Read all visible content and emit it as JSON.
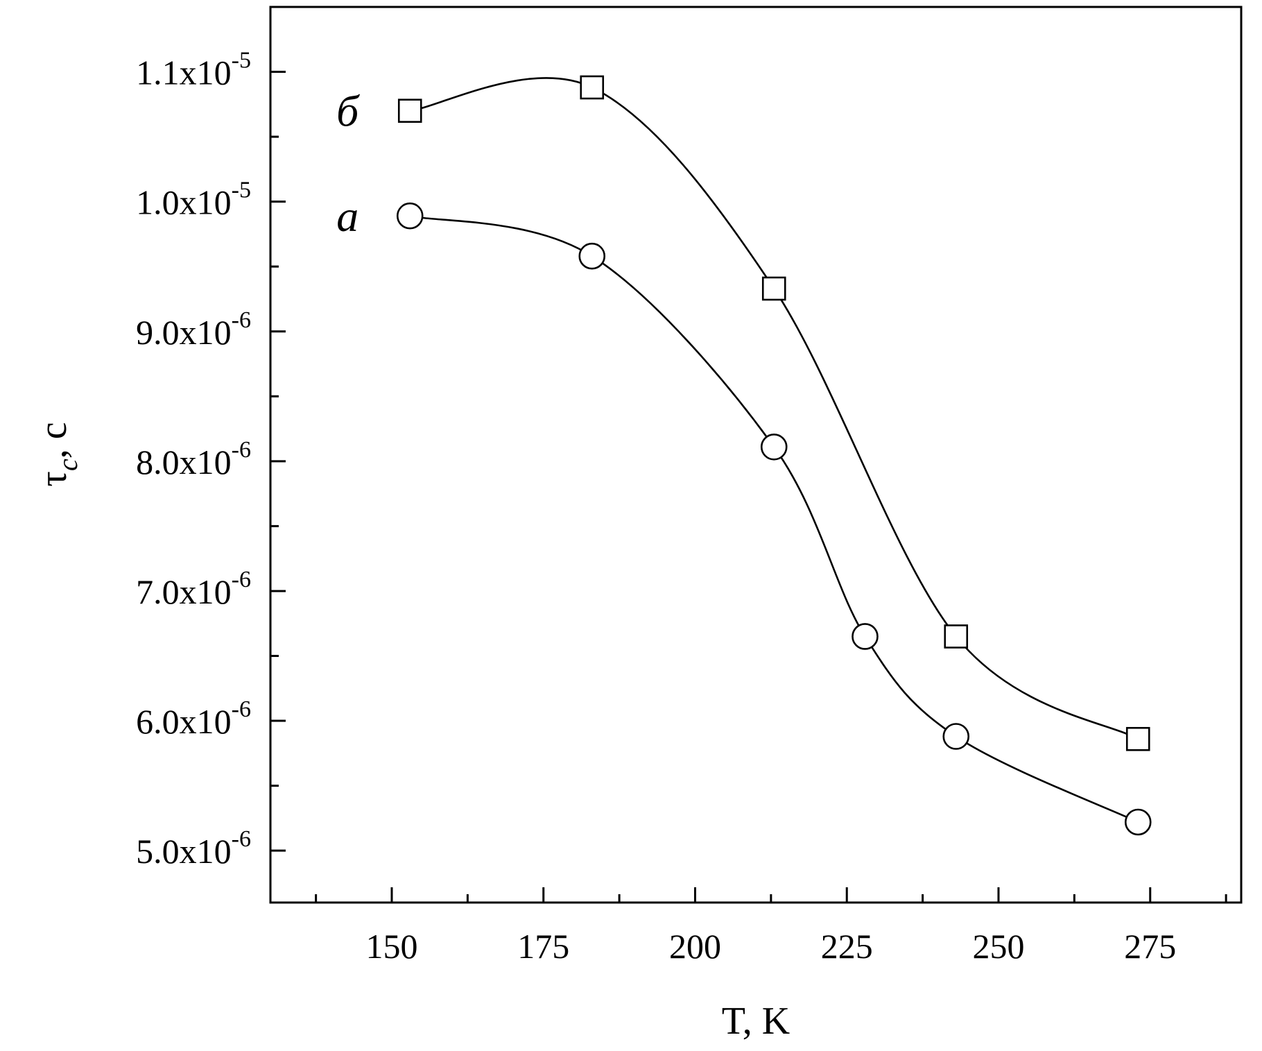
{
  "chart_data": {
    "type": "line",
    "xlabel": "T, K",
    "ylabel": "τ_c, с",
    "xlim": [
      130,
      290
    ],
    "ylim": [
      4.6e-06,
      1.15e-05
    ],
    "xticks": [
      150,
      175,
      200,
      225,
      250,
      275
    ],
    "yticks": [
      {
        "value": 5e-06,
        "mantissa": "5.0x10",
        "exponent": "-6"
      },
      {
        "value": 6e-06,
        "mantissa": "6.0x10",
        "exponent": "-6"
      },
      {
        "value": 7e-06,
        "mantissa": "7.0x10",
        "exponent": "-6"
      },
      {
        "value": 8e-06,
        "mantissa": "8.0x10",
        "exponent": "-6"
      },
      {
        "value": 9e-06,
        "mantissa": "9.0x10",
        "exponent": "-6"
      },
      {
        "value": 1e-05,
        "mantissa": "1.0x10",
        "exponent": "-5"
      },
      {
        "value": 1.1e-05,
        "mantissa": "1.1x10",
        "exponent": "-5"
      }
    ],
    "grid": false,
    "series": [
      {
        "name": "a",
        "marker": "circle",
        "x": [
          153,
          183,
          213,
          228,
          243,
          273
        ],
        "y": [
          9.89e-06,
          9.58e-06,
          8.11e-06,
          6.65e-06,
          5.88e-06,
          5.22e-06
        ]
      },
      {
        "name": "б",
        "marker": "square",
        "x": [
          153,
          183,
          213,
          243,
          273
        ],
        "y": [
          1.07e-05,
          1.088e-05,
          9.33e-06,
          6.65e-06,
          5.86e-06
        ]
      }
    ]
  }
}
